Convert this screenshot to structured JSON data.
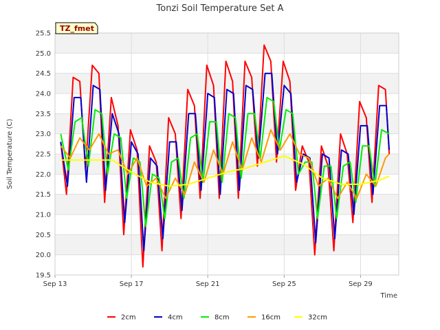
{
  "chart_data": {
    "type": "line",
    "title": "Tonzi Soil Temperature Set A",
    "xlabel": "Time",
    "ylabel": "Soil Temperature (C)",
    "badge": "TZ_fmet",
    "ylim": [
      19.5,
      25.5
    ],
    "xlim": [
      0,
      18
    ],
    "yticks": [
      19.5,
      20.0,
      20.5,
      21.0,
      21.5,
      22.0,
      22.5,
      23.0,
      23.5,
      24.0,
      24.5,
      25.0,
      25.5
    ],
    "xticks": [
      {
        "value": 0,
        "label": "Sep 13"
      },
      {
        "value": 4,
        "label": "Sep 17"
      },
      {
        "value": 8,
        "label": "Sep 21"
      },
      {
        "value": 12,
        "label": "Sep 25"
      },
      {
        "value": 16,
        "label": "Sep 29"
      }
    ],
    "grid": true,
    "legend_position": "bottom",
    "x_unit": "days since Sep 13",
    "series": [
      {
        "name": "2cm",
        "color": "#ff0000",
        "x": [
          0.3,
          0.6,
          0.95,
          1.3,
          1.6,
          1.95,
          2.3,
          2.6,
          2.95,
          3.3,
          3.6,
          3.95,
          4.3,
          4.6,
          4.95,
          5.3,
          5.6,
          5.95,
          6.3,
          6.6,
          6.95,
          7.3,
          7.6,
          7.95,
          8.3,
          8.6,
          8.95,
          9.3,
          9.6,
          9.95,
          10.3,
          10.6,
          10.95,
          11.3,
          11.6,
          11.95,
          12.3,
          12.6,
          12.95,
          13.3,
          13.6,
          13.95,
          14.3,
          14.6,
          14.95,
          15.3,
          15.6,
          15.95,
          16.3,
          16.6,
          16.95,
          17.3,
          17.5
        ],
        "y": [
          22.8,
          21.5,
          24.4,
          24.3,
          22.1,
          24.7,
          24.5,
          21.3,
          23.9,
          23.2,
          20.5,
          23.1,
          22.6,
          19.7,
          22.7,
          22.3,
          20.1,
          23.4,
          23.0,
          20.9,
          24.1,
          23.7,
          21.4,
          24.7,
          24.2,
          21.4,
          24.8,
          24.3,
          21.4,
          24.8,
          24.4,
          22.2,
          25.2,
          24.8,
          22.3,
          24.8,
          24.3,
          21.6,
          22.7,
          22.3,
          20.0,
          22.7,
          22.2,
          20.1,
          23.0,
          22.5,
          20.8,
          23.8,
          23.4,
          21.3,
          24.2,
          24.1,
          22.5
        ]
      },
      {
        "name": "4cm",
        "color": "#0000cc",
        "x": [
          0.3,
          0.65,
          1.0,
          1.35,
          1.65,
          2.0,
          2.35,
          2.65,
          3.0,
          3.35,
          3.65,
          4.0,
          4.35,
          4.65,
          5.0,
          5.35,
          5.65,
          6.0,
          6.35,
          6.65,
          7.0,
          7.35,
          7.65,
          8.0,
          8.35,
          8.65,
          9.0,
          9.35,
          9.65,
          10.0,
          10.35,
          10.65,
          11.0,
          11.35,
          11.65,
          12.0,
          12.35,
          12.65,
          13.0,
          13.35,
          13.65,
          14.0,
          14.35,
          14.65,
          15.0,
          15.35,
          15.65,
          16.0,
          16.35,
          16.65,
          17.0,
          17.35,
          17.5
        ],
        "y": [
          22.8,
          21.7,
          23.9,
          23.9,
          21.8,
          24.2,
          24.1,
          21.6,
          23.5,
          23.0,
          20.8,
          22.8,
          22.5,
          20.1,
          22.4,
          22.2,
          20.4,
          22.8,
          22.8,
          21.1,
          23.5,
          23.5,
          21.6,
          24.0,
          23.9,
          21.5,
          24.1,
          24.0,
          21.6,
          24.2,
          24.1,
          22.4,
          24.5,
          24.5,
          22.5,
          24.2,
          24.0,
          21.8,
          22.5,
          22.4,
          20.3,
          22.5,
          22.4,
          20.4,
          22.6,
          22.5,
          21.0,
          23.2,
          23.2,
          21.5,
          23.7,
          23.7,
          22.6
        ]
      },
      {
        "name": "8cm",
        "color": "#00ee00",
        "x": [
          0.3,
          0.7,
          1.05,
          1.4,
          1.75,
          2.1,
          2.45,
          2.75,
          3.1,
          3.45,
          3.75,
          4.1,
          4.45,
          4.75,
          5.1,
          5.45,
          5.75,
          6.1,
          6.45,
          6.75,
          7.1,
          7.45,
          7.75,
          8.1,
          8.45,
          8.75,
          9.1,
          9.45,
          9.75,
          10.1,
          10.45,
          10.75,
          11.1,
          11.45,
          11.75,
          12.1,
          12.45,
          12.75,
          13.1,
          13.45,
          13.75,
          14.1,
          14.45,
          14.75,
          15.1,
          15.45,
          15.75,
          16.1,
          16.45,
          16.75,
          17.1,
          17.5
        ],
        "y": [
          23.0,
          22.1,
          23.3,
          23.4,
          22.2,
          23.6,
          23.5,
          22.0,
          23.0,
          22.9,
          21.4,
          22.4,
          22.3,
          20.7,
          22.0,
          21.9,
          20.9,
          22.3,
          22.4,
          21.4,
          22.9,
          23.0,
          21.8,
          23.3,
          23.3,
          21.8,
          23.5,
          23.4,
          21.9,
          23.5,
          23.5,
          22.4,
          23.9,
          23.8,
          22.6,
          23.6,
          23.5,
          22.0,
          22.3,
          22.3,
          20.9,
          22.2,
          22.2,
          20.9,
          22.2,
          22.3,
          21.3,
          22.7,
          22.7,
          21.7,
          23.1,
          23.0
        ]
      },
      {
        "name": "16cm",
        "color": "#ff9900",
        "x": [
          0.3,
          0.8,
          1.3,
          1.8,
          2.3,
          2.8,
          3.3,
          3.8,
          4.3,
          4.8,
          5.3,
          5.8,
          6.3,
          6.8,
          7.3,
          7.8,
          8.3,
          8.8,
          9.3,
          9.8,
          10.3,
          10.8,
          11.3,
          11.8,
          12.3,
          12.8,
          13.3,
          13.8,
          14.3,
          14.8,
          15.3,
          15.8,
          16.3,
          16.8,
          17.3,
          17.5
        ],
        "y": [
          22.7,
          22.4,
          22.9,
          22.6,
          23.0,
          22.5,
          22.6,
          22.0,
          22.4,
          21.7,
          21.9,
          21.4,
          21.9,
          21.5,
          22.3,
          21.8,
          22.6,
          22.0,
          22.8,
          22.1,
          22.9,
          22.3,
          23.1,
          22.6,
          23.0,
          22.5,
          22.4,
          21.7,
          21.9,
          21.4,
          21.8,
          21.4,
          22.0,
          21.7,
          22.4,
          22.5
        ]
      },
      {
        "name": "32cm",
        "color": "#ffff00",
        "x": [
          0.3,
          1.0,
          2.0,
          3.0,
          4.0,
          5.0,
          6.0,
          7.0,
          8.0,
          9.0,
          10.0,
          11.0,
          12.0,
          13.0,
          14.0,
          15.0,
          16.0,
          17.0,
          17.5
        ],
        "y": [
          22.35,
          22.35,
          22.35,
          22.35,
          22.05,
          21.8,
          21.7,
          21.75,
          21.9,
          22.05,
          22.15,
          22.3,
          22.45,
          22.25,
          21.9,
          21.75,
          21.75,
          21.85,
          21.95
        ]
      }
    ]
  }
}
